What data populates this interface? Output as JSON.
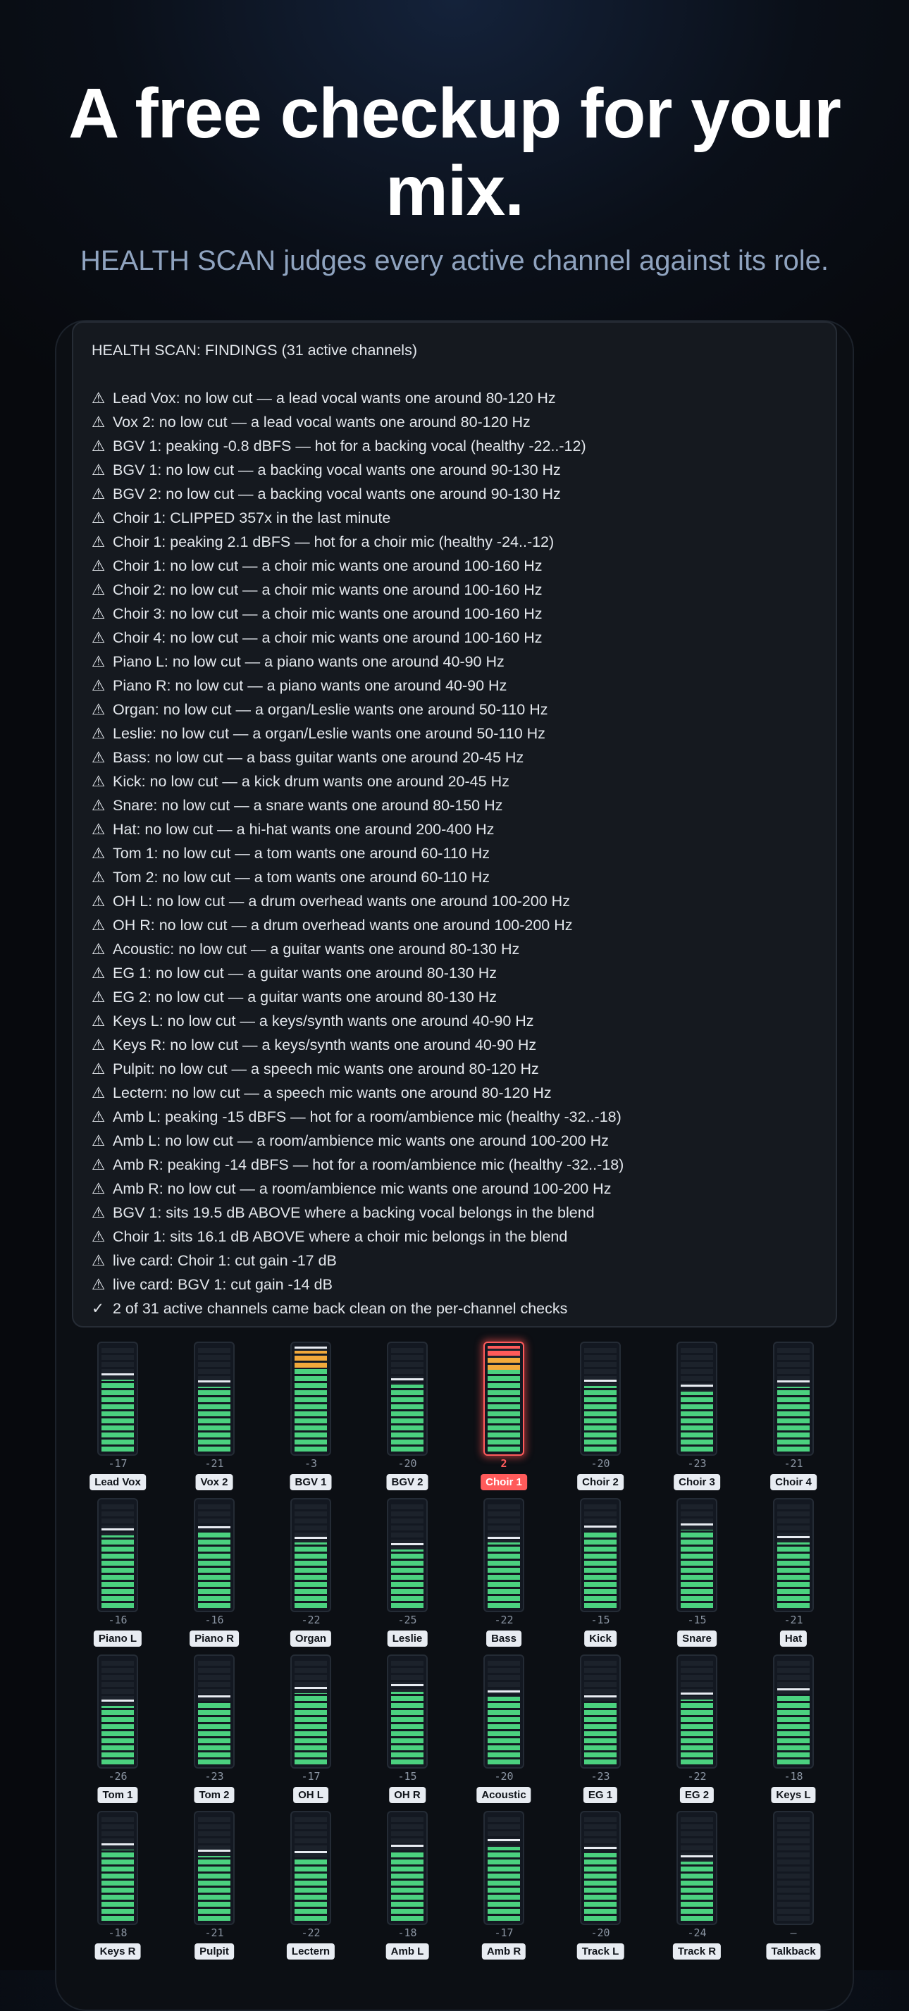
{
  "hero": {
    "title": "A free checkup for your mix.",
    "subtitle": "HEALTH SCAN judges every active channel against its role."
  },
  "findings": {
    "header": "HEALTH SCAN: FINDINGS (31 active channels)",
    "warning_icon": "⚠",
    "check_icon": "✓",
    "lines": [
      "Lead Vox: no low cut — a lead vocal wants one around 80-120 Hz",
      "Vox 2: no low cut — a lead vocal wants one around 80-120 Hz",
      "BGV 1: peaking -0.8 dBFS — hot for a backing vocal (healthy -22..-12)",
      "BGV 1: no low cut — a backing vocal wants one around 90-130 Hz",
      "BGV 2: no low cut — a backing vocal wants one around 90-130 Hz",
      "Choir 1: CLIPPED 357x in the last minute",
      "Choir 1: peaking 2.1 dBFS — hot for a choir mic (healthy -24..-12)",
      "Choir 1: no low cut — a choir mic wants one around 100-160 Hz",
      "Choir 2: no low cut — a choir mic wants one around 100-160 Hz",
      "Choir 3: no low cut — a choir mic wants one around 100-160 Hz",
      "Choir 4: no low cut — a choir mic wants one around 100-160 Hz",
      "Piano L: no low cut — a piano wants one around 40-90 Hz",
      "Piano R: no low cut — a piano wants one around 40-90 Hz",
      "Organ: no low cut — a organ/Leslie wants one around 50-110 Hz",
      "Leslie: no low cut — a organ/Leslie wants one around 50-110 Hz",
      "Bass: no low cut — a bass guitar wants one around 20-45 Hz",
      "Kick: no low cut — a kick drum wants one around 20-45 Hz",
      "Snare: no low cut — a snare wants one around 80-150 Hz",
      "Hat: no low cut — a hi-hat wants one around 200-400 Hz",
      "Tom 1: no low cut — a tom wants one around 60-110 Hz",
      "Tom 2: no low cut — a tom wants one around 60-110 Hz",
      "OH L: no low cut — a drum overhead wants one around 100-200 Hz",
      "OH R: no low cut — a drum overhead wants one around 100-200 Hz",
      "Acoustic: no low cut — a guitar wants one around 80-130 Hz",
      "EG 1: no low cut — a guitar wants one around 80-130 Hz",
      "EG 2: no low cut — a guitar wants one around 80-130 Hz",
      "Keys L: no low cut — a keys/synth wants one around 40-90 Hz",
      "Keys R: no low cut — a keys/synth wants one around 40-90 Hz",
      "Pulpit: no low cut — a speech mic wants one around 80-120 Hz",
      "Lectern: no low cut — a speech mic wants one around 80-120 Hz",
      "Amb L: peaking -15 dBFS — hot for a room/ambience mic (healthy -32..-18)",
      "Amb L: no low cut — a room/ambience mic wants one around 100-200 Hz",
      "Amb R: peaking -14 dBFS — hot for a room/ambience mic (healthy -32..-18)",
      "Amb R: no low cut — a room/ambience mic wants one around 100-200 Hz",
      "BGV 1: sits 19.5 dB ABOVE where a backing vocal belongs in the blend",
      "Choir 1: sits 16.1 dB ABOVE where a choir mic belongs in the blend",
      "live card: Choir 1: cut gain -17 dB",
      "live card: BGV 1: cut gain -14 dB"
    ],
    "summary": "2 of 31 active channels came back clean on the per-channel checks"
  },
  "channels": [
    {
      "name": "Lead Vox",
      "value": "-17",
      "level": 0.68,
      "peak": 0.72,
      "state": "ok"
    },
    {
      "name": "Vox 2",
      "value": "-21",
      "level": 0.61,
      "peak": 0.65,
      "state": "ok"
    },
    {
      "name": "BGV 1",
      "value": "-3",
      "level": 0.95,
      "peak": 0.97,
      "state": "warn"
    },
    {
      "name": "BGV 2",
      "value": "-20",
      "level": 0.63,
      "peak": 0.67,
      "state": "ok"
    },
    {
      "name": "Choir 1",
      "value": "2",
      "level": 1.0,
      "peak": 1.0,
      "state": "clip"
    },
    {
      "name": "Choir 2",
      "value": "-20",
      "level": 0.62,
      "peak": 0.66,
      "state": "ok"
    },
    {
      "name": "Choir 3",
      "value": "-23",
      "level": 0.57,
      "peak": 0.61,
      "state": "ok"
    },
    {
      "name": "Choir 4",
      "value": "-21",
      "level": 0.61,
      "peak": 0.65,
      "state": "ok"
    },
    {
      "name": "Piano L",
      "value": "-16",
      "level": 0.69,
      "peak": 0.73,
      "state": "ok"
    },
    {
      "name": "Piano R",
      "value": "-16",
      "level": 0.71,
      "peak": 0.75,
      "state": "ok"
    },
    {
      "name": "Organ",
      "value": "-22",
      "level": 0.62,
      "peak": 0.65,
      "state": "ok"
    },
    {
      "name": "Leslie",
      "value": "-25",
      "level": 0.55,
      "peak": 0.59,
      "state": "ok"
    },
    {
      "name": "Bass",
      "value": "-22",
      "level": 0.62,
      "peak": 0.65,
      "state": "ok"
    },
    {
      "name": "Kick",
      "value": "-15",
      "level": 0.72,
      "peak": 0.76,
      "state": "ok"
    },
    {
      "name": "Snare",
      "value": "-15",
      "level": 0.74,
      "peak": 0.78,
      "state": "ok"
    },
    {
      "name": "Hat",
      "value": "-21",
      "level": 0.62,
      "peak": 0.66,
      "state": "ok"
    },
    {
      "name": "Tom 1",
      "value": "-26",
      "level": 0.55,
      "peak": 0.59,
      "state": "ok"
    },
    {
      "name": "Tom 2",
      "value": "-23",
      "level": 0.59,
      "peak": 0.63,
      "state": "ok"
    },
    {
      "name": "OH L",
      "value": "-17",
      "level": 0.67,
      "peak": 0.71,
      "state": "ok"
    },
    {
      "name": "OH R",
      "value": "-15",
      "level": 0.69,
      "peak": 0.74,
      "state": "ok"
    },
    {
      "name": "Acoustic",
      "value": "-20",
      "level": 0.64,
      "peak": 0.68,
      "state": "ok"
    },
    {
      "name": "EG 1",
      "value": "-23",
      "level": 0.59,
      "peak": 0.63,
      "state": "ok"
    },
    {
      "name": "EG 2",
      "value": "-22",
      "level": 0.61,
      "peak": 0.66,
      "state": "ok"
    },
    {
      "name": "Keys L",
      "value": "-18",
      "level": 0.66,
      "peak": 0.7,
      "state": "ok"
    },
    {
      "name": "Keys R",
      "value": "-18",
      "level": 0.67,
      "peak": 0.71,
      "state": "ok"
    },
    {
      "name": "Pulpit",
      "value": "-21",
      "level": 0.61,
      "peak": 0.65,
      "state": "ok"
    },
    {
      "name": "Lectern",
      "value": "-22",
      "level": 0.6,
      "peak": 0.64,
      "state": "ok"
    },
    {
      "name": "Amb L",
      "value": "-18",
      "level": 0.66,
      "peak": 0.7,
      "state": "ok"
    },
    {
      "name": "Amb R",
      "value": "-17",
      "level": 0.7,
      "peak": 0.75,
      "state": "ok"
    },
    {
      "name": "Track L",
      "value": "-20",
      "level": 0.64,
      "peak": 0.68,
      "state": "ok"
    },
    {
      "name": "Track R",
      "value": "-24",
      "level": 0.56,
      "peak": 0.6,
      "state": "ok"
    },
    {
      "name": "Talkback",
      "value": "–",
      "level": 0,
      "peak": null,
      "state": "off"
    }
  ],
  "colors": {
    "meter_green": "#4bd17f",
    "meter_amber": "#f2a93b",
    "clip_red": "#ff5b5b"
  }
}
